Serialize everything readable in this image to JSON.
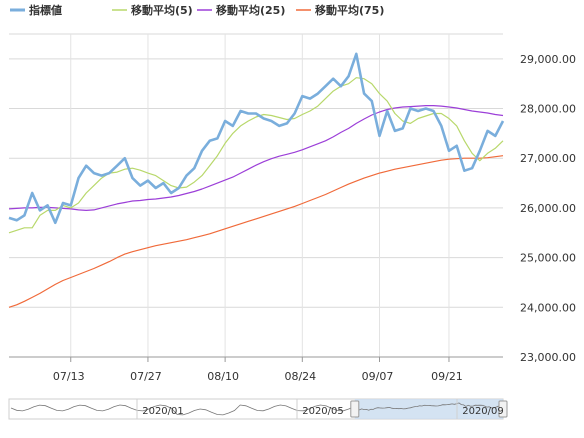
{
  "chart_data": {
    "type": "line",
    "legend_placement": "top-left",
    "grid": true,
    "ylim": [
      23000,
      29500
    ],
    "y_ticks": [
      {
        "value": 23000,
        "label": "23,000.00"
      },
      {
        "value": 24000,
        "label": "24,000.00"
      },
      {
        "value": 25000,
        "label": "25,000.00"
      },
      {
        "value": 26000,
        "label": "26,000.00"
      },
      {
        "value": 27000,
        "label": "27,000.00"
      },
      {
        "value": 28000,
        "label": "28,000.00"
      },
      {
        "value": 29000,
        "label": "29,000.00"
      }
    ],
    "x_ticks": [
      {
        "index": 8,
        "label": "07/13"
      },
      {
        "index": 18,
        "label": "07/27"
      },
      {
        "index": 28,
        "label": "08/10"
      },
      {
        "index": 38,
        "label": "08/24"
      },
      {
        "index": 48,
        "label": "09/07"
      },
      {
        "index": 57,
        "label": "09/21"
      }
    ],
    "series": [
      {
        "name": "指標値",
        "color": "#7aaedc",
        "values": [
          25800,
          25750,
          25850,
          26300,
          25950,
          26050,
          25700,
          26100,
          26050,
          26600,
          26850,
          26700,
          26650,
          26700,
          26850,
          27000,
          26600,
          26450,
          26550,
          26400,
          26500,
          26300,
          26400,
          26650,
          26800,
          27150,
          27350,
          27400,
          27750,
          27650,
          27950,
          27900,
          27900,
          27800,
          27750,
          27650,
          27700,
          27900,
          28250,
          28200,
          28300,
          28450,
          28600,
          28450,
          28650,
          29100,
          28300,
          28150,
          27450,
          27950,
          27550,
          27600,
          28000,
          27950,
          28000,
          27950,
          27650,
          27150,
          27250,
          26750,
          26800,
          27150,
          27550,
          27450,
          27750
        ]
      },
      {
        "name": "移動平均(5)",
        "color": "#b8d86b",
        "values": [
          25500,
          25550,
          25600,
          25600,
          25850,
          25950,
          25950,
          26050,
          26000,
          26100,
          26300,
          26450,
          26600,
          26700,
          26720,
          26780,
          26800,
          26760,
          26700,
          26650,
          26550,
          26450,
          26400,
          26420,
          26520,
          26650,
          26850,
          27050,
          27300,
          27500,
          27650,
          27750,
          27830,
          27880,
          27860,
          27820,
          27780,
          27800,
          27880,
          27950,
          28050,
          28200,
          28350,
          28450,
          28500,
          28620,
          28600,
          28500,
          28300,
          28150,
          27900,
          27750,
          27700,
          27800,
          27850,
          27900,
          27900,
          27800,
          27650,
          27350,
          27100,
          26950,
          27100,
          27200,
          27350
        ]
      },
      {
        "name": "移動平均(25)",
        "color": "#9c3fd8",
        "values": [
          25980,
          25990,
          26000,
          26000,
          26010,
          26010,
          26000,
          25990,
          25980,
          25960,
          25950,
          25960,
          26000,
          26040,
          26080,
          26110,
          26140,
          26150,
          26170,
          26180,
          26200,
          26220,
          26250,
          26290,
          26330,
          26380,
          26440,
          26500,
          26560,
          26620,
          26700,
          26780,
          26860,
          26930,
          26990,
          27040,
          27080,
          27120,
          27170,
          27230,
          27290,
          27350,
          27430,
          27520,
          27600,
          27700,
          27790,
          27870,
          27930,
          27980,
          28010,
          28030,
          28040,
          28050,
          28060,
          28060,
          28050,
          28030,
          28010,
          27980,
          27950,
          27930,
          27910,
          27880,
          27860
        ]
      },
      {
        "name": "移動平均(75)",
        "color": "#f06a3a",
        "values": [
          24000,
          24050,
          24120,
          24200,
          24280,
          24370,
          24460,
          24540,
          24600,
          24660,
          24720,
          24780,
          24850,
          24920,
          25000,
          25070,
          25120,
          25160,
          25200,
          25240,
          25270,
          25300,
          25330,
          25360,
          25400,
          25440,
          25480,
          25530,
          25580,
          25630,
          25680,
          25730,
          25780,
          25830,
          25880,
          25930,
          25980,
          26030,
          26090,
          26150,
          26210,
          26270,
          26340,
          26410,
          26480,
          26540,
          26600,
          26650,
          26700,
          26740,
          26780,
          26810,
          26840,
          26870,
          26900,
          26930,
          26960,
          26980,
          26990,
          27000,
          27000,
          27000,
          27010,
          27030,
          27050
        ]
      }
    ],
    "navigator": {
      "labels": [
        "2020/01",
        "2020/05",
        "2020/09"
      ],
      "selection_start": 0.7,
      "selection_end": 1.0
    }
  }
}
